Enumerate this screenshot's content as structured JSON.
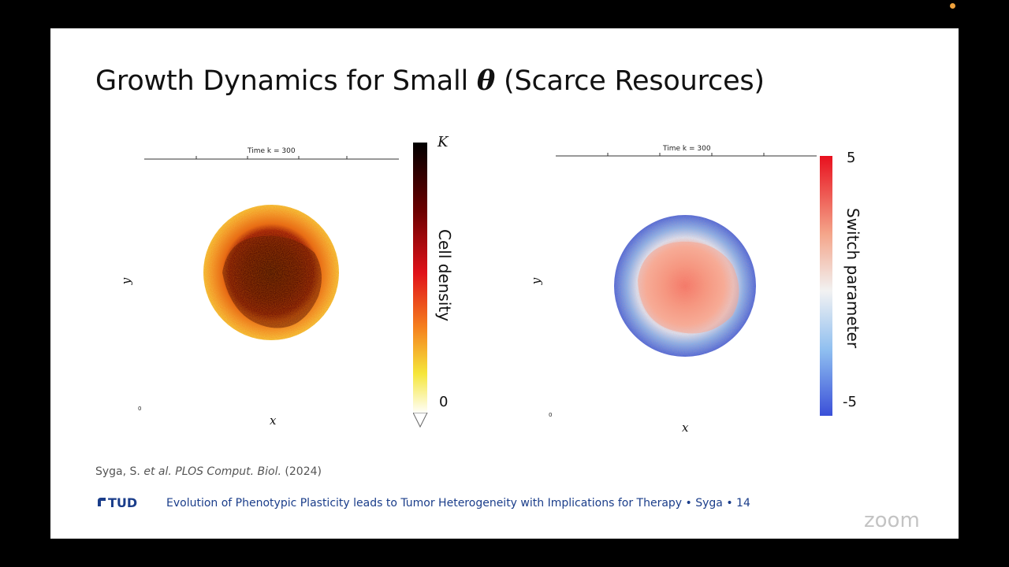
{
  "slide": {
    "title_prefix": "Growth Dynamics for Small ",
    "title_symbol": "θ",
    "title_suffix": " (Scarce Resources)",
    "citation_author": "Syga, S. ",
    "citation_etal": "et al.",
    "citation_journal": " PLOS Comput. Biol.",
    "citation_year": " (2024)",
    "logo_text": "TUD",
    "footer_text": "Evolution of Phenotypic Plasticity leads to Tumor Heterogeneity with Implications for Therapy • Syga • 14",
    "watermark": "zoom"
  },
  "figures": {
    "left": {
      "plot_title": "Time k = 300",
      "xlabel": "x",
      "ylabel": "y",
      "origin_tick": "0",
      "colorbar_label": "Cell density",
      "colorbar_max": "K",
      "colorbar_min": "0",
      "colormap": [
        "#000000",
        "#6b0000",
        "#e0121a",
        "#f5801e",
        "#f5e63a",
        "#ffffff"
      ]
    },
    "right": {
      "plot_title": "Time k = 300",
      "xlabel": "x",
      "ylabel": "y",
      "origin_tick": "0",
      "colorbar_label": "Switch parameter",
      "colorbar_max": "5",
      "colorbar_min": "-5",
      "colormap": [
        "#e8101e",
        "#f4a58a",
        "#f2f2f2",
        "#8ebef0",
        "#3a4fd8"
      ]
    }
  }
}
